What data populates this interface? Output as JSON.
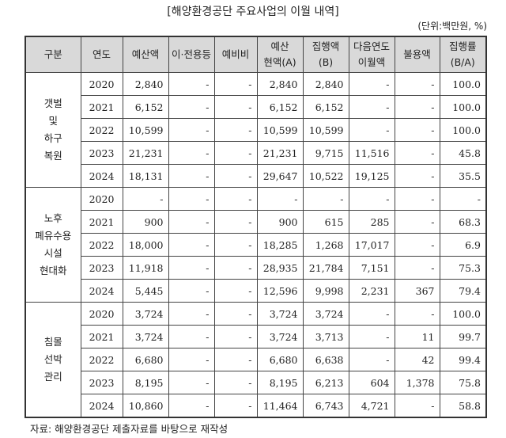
{
  "title": "[해양환경공단 주요사업의 이월 내역]",
  "unit": "(단위:백만원, %)",
  "headers": [
    "구분",
    "연도",
    "예산액",
    "이·전용등",
    "예비비",
    "예산\n현액(A)",
    "집행액\n(B)",
    "다음연도\n이월액",
    "불용액",
    "집행률\n(B/A)"
  ],
  "groups": [
    {
      "category": "갯벌\n및\n하구\n복원",
      "rows": [
        [
          "2020",
          "2,840",
          "-",
          "-",
          "2,840",
          "2,840",
          "-",
          "-",
          "100.0"
        ],
        [
          "2021",
          "6,152",
          "-",
          "-",
          "6,152",
          "6,152",
          "-",
          "-",
          "100.0"
        ],
        [
          "2022",
          "10,599",
          "-",
          "-",
          "10,599",
          "10,599",
          "-",
          "-",
          "100.0"
        ],
        [
          "2023",
          "21,231",
          "-",
          "-",
          "21,231",
          "9,715",
          "11,516",
          "-",
          "45.8"
        ],
        [
          "2024",
          "18,131",
          "-",
          "-",
          "29,647",
          "10,522",
          "19,125",
          "-",
          "35.5"
        ]
      ]
    },
    {
      "category": "노후\n폐유수용\n시설\n현대화",
      "rows": [
        [
          "2020",
          "-",
          "-",
          "-",
          "-",
          "-",
          "-",
          "-",
          "-"
        ],
        [
          "2021",
          "900",
          "-",
          "-",
          "900",
          "615",
          "285",
          "-",
          "68.3"
        ],
        [
          "2022",
          "18,000",
          "-",
          "-",
          "18,285",
          "1,268",
          "17,017",
          "-",
          "6.9"
        ],
        [
          "2023",
          "11,918",
          "-",
          "-",
          "28,935",
          "21,784",
          "7,151",
          "-",
          "75.3"
        ],
        [
          "2024",
          "5,445",
          "-",
          "-",
          "12,596",
          "9,998",
          "2,231",
          "367",
          "79.4"
        ]
      ]
    },
    {
      "category": "침몰\n선박\n관리",
      "rows": [
        [
          "2020",
          "3,724",
          "-",
          "-",
          "3,724",
          "3,724",
          "-",
          "-",
          "100.0"
        ],
        [
          "2021",
          "3,724",
          "-",
          "-",
          "3,724",
          "3,713",
          "-",
          "11",
          "99.7"
        ],
        [
          "2022",
          "6,680",
          "-",
          "-",
          "6,680",
          "6,638",
          "-",
          "42",
          "99.4"
        ],
        [
          "2023",
          "8,195",
          "-",
          "-",
          "8,195",
          "6,213",
          "604",
          "1,378",
          "75.8"
        ],
        [
          "2024",
          "10,860",
          "-",
          "-",
          "11,464",
          "6,743",
          "4,721",
          "-",
          "58.8"
        ]
      ]
    }
  ],
  "source": "자료: 해양환경공단 제출자료를 바탕으로 재작성"
}
